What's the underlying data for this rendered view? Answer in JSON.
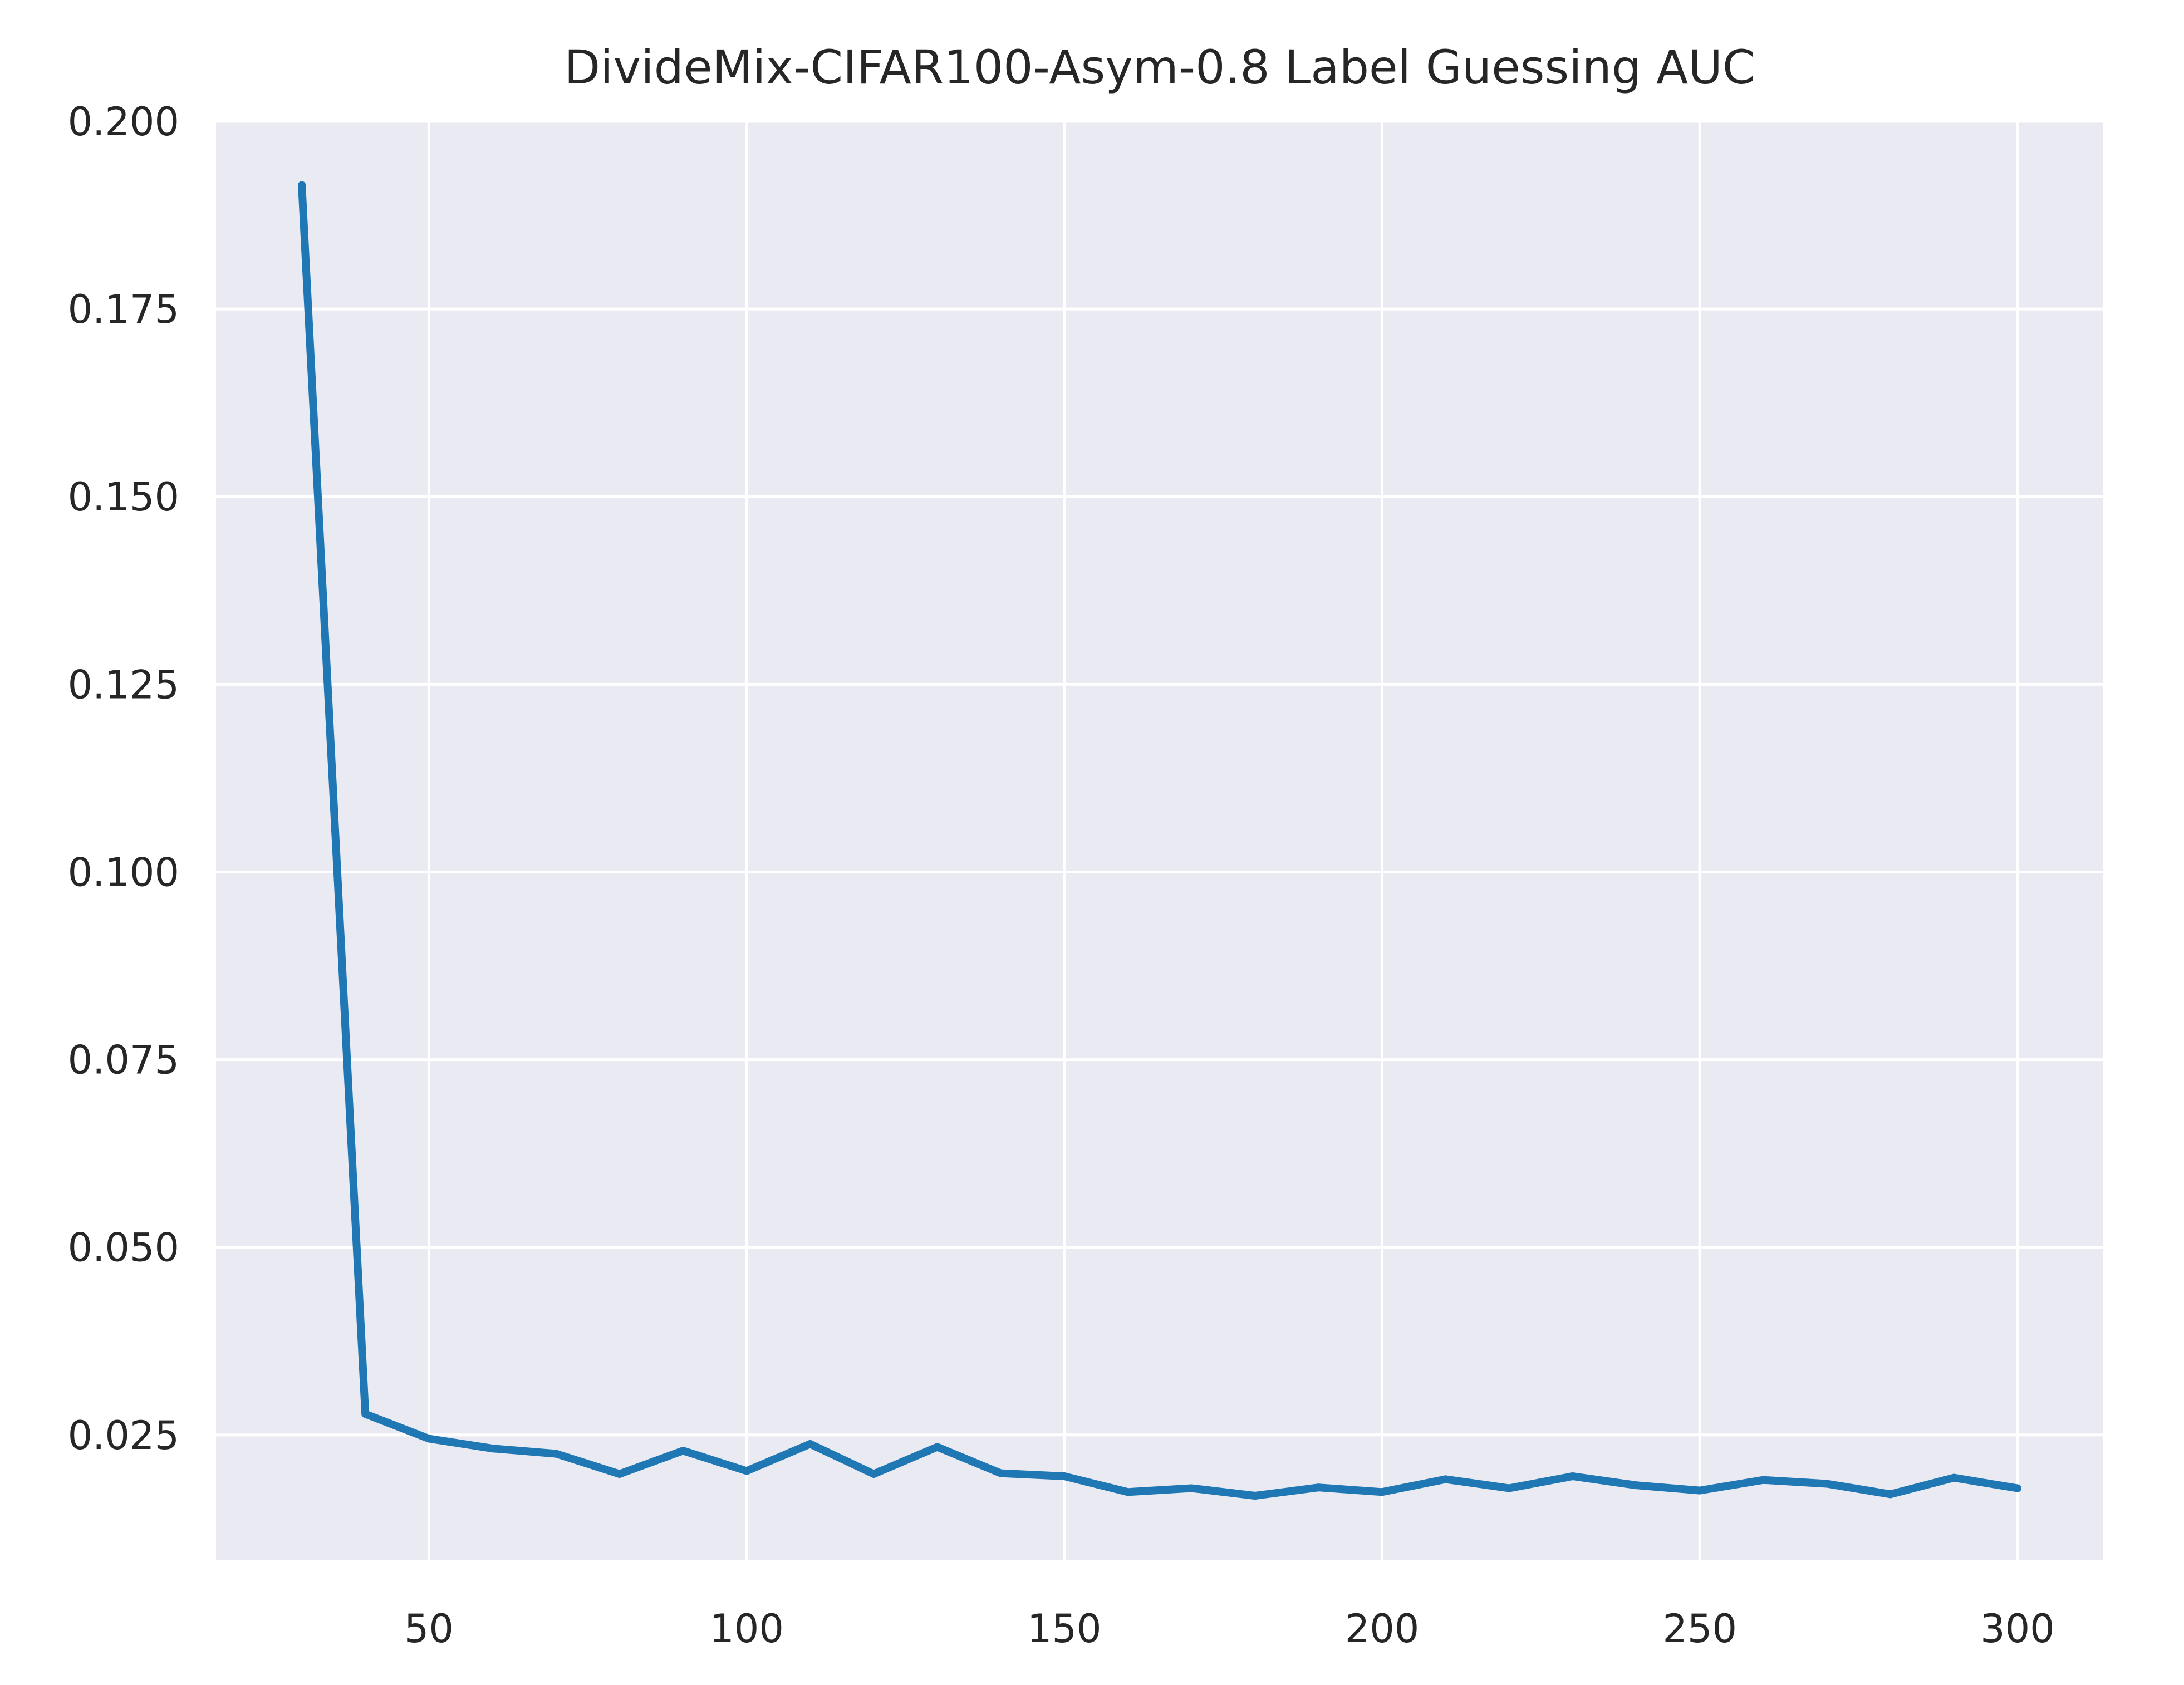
{
  "chart_data": {
    "type": "line",
    "title": "DivideMix-CIFAR100-Asym-0.8 Label Guessing AUC",
    "xlabel": "",
    "ylabel": "",
    "xlim": [
      16.5,
      313.5
    ],
    "ylim": [
      0.0083,
      0.2
    ],
    "xticks": [
      50,
      100,
      150,
      200,
      250,
      300
    ],
    "xtick_labels": [
      "50",
      "100",
      "150",
      "200",
      "250",
      "300"
    ],
    "yticks": [
      0.025,
      0.05,
      0.075,
      0.1,
      0.125,
      0.15,
      0.175,
      0.2
    ],
    "ytick_labels": [
      "0.025",
      "0.050",
      "0.075",
      "0.100",
      "0.125",
      "0.150",
      "0.175",
      "0.200"
    ],
    "grid": true,
    "background_color": "#eaeaf2",
    "grid_color": "#ffffff",
    "series": [
      {
        "color": "#1f77b4",
        "x": [
          30,
          40,
          50,
          60,
          70,
          80,
          90,
          100,
          110,
          120,
          130,
          140,
          150,
          160,
          170,
          180,
          190,
          200,
          210,
          220,
          230,
          240,
          250,
          260,
          270,
          280,
          290,
          300
        ],
        "y": [
          0.1915,
          0.0278,
          0.0245,
          0.0232,
          0.0225,
          0.0198,
          0.0229,
          0.0202,
          0.0238,
          0.0198,
          0.0234,
          0.0199,
          0.0195,
          0.0174,
          0.0179,
          0.0169,
          0.018,
          0.0174,
          0.0191,
          0.0179,
          0.0195,
          0.0183,
          0.0176,
          0.019,
          0.0185,
          0.0171,
          0.0193,
          0.0179
        ]
      }
    ]
  }
}
